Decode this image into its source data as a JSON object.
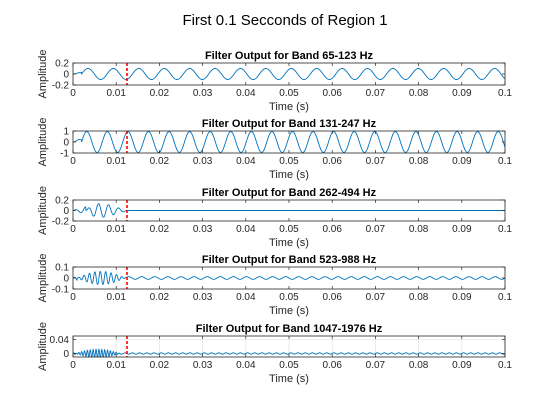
{
  "figure": {
    "title": "First 0.1 Secconds of Region 1"
  },
  "chart_data": [
    {
      "type": "line",
      "title": "Filter Output for Band 65-123 Hz",
      "xlabel": "Time (s)",
      "ylabel": "Amplitude",
      "xlim": [
        0,
        0.1
      ],
      "ylim": [
        -0.2,
        0.2
      ],
      "xticks": [
        0,
        0.01,
        0.02,
        0.03,
        0.04,
        0.05,
        0.06,
        0.07,
        0.08,
        0.09,
        0.1
      ],
      "xtick_labels": [
        "0",
        "0.01",
        "0.02",
        "0.03",
        "0.04",
        "0.05",
        "0.06",
        "0.07",
        "0.08",
        "0.09",
        "0.1"
      ],
      "yticks": [
        -0.2,
        0,
        0.2
      ],
      "ytick_labels": [
        "-0.2",
        "0",
        "0.2"
      ],
      "grid": false,
      "marker_x": 0.0125,
      "signal": {
        "freq_hz": 170,
        "amplitude": 0.1,
        "onset_s": 0.002,
        "envelope": "steady"
      },
      "colors": {
        "line": "#0072bd",
        "marker": "#ff0000"
      }
    },
    {
      "type": "line",
      "title": "Filter Output for Band 131-247 Hz",
      "xlabel": "Time (s)",
      "ylabel": "Amplitude",
      "xlim": [
        0,
        0.1
      ],
      "ylim": [
        -1,
        1
      ],
      "xticks": [
        0,
        0.01,
        0.02,
        0.03,
        0.04,
        0.05,
        0.06,
        0.07,
        0.08,
        0.09,
        0.1
      ],
      "xtick_labels": [
        "0",
        "0.01",
        "0.02",
        "0.03",
        "0.04",
        "0.05",
        "0.06",
        "0.07",
        "0.08",
        "0.09",
        "0.1"
      ],
      "yticks": [
        -1,
        0,
        1
      ],
      "ytick_labels": [
        "-1",
        "0",
        "1"
      ],
      "grid": false,
      "marker_x": 0.0125,
      "signal": {
        "freq_hz": 210,
        "amplitude": 0.95,
        "onset_s": 0.002,
        "envelope": "steady"
      },
      "colors": {
        "line": "#0072bd",
        "marker": "#ff0000"
      }
    },
    {
      "type": "line",
      "title": "Filter Output for Band 262-494 Hz",
      "xlabel": "Time (s)",
      "ylabel": "Amplitude",
      "xlim": [
        0,
        0.1
      ],
      "ylim": [
        -0.2,
        0.2
      ],
      "xticks": [
        0,
        0.01,
        0.02,
        0.03,
        0.04,
        0.05,
        0.06,
        0.07,
        0.08,
        0.09,
        0.1
      ],
      "xtick_labels": [
        "0",
        "0.01",
        "0.02",
        "0.03",
        "0.04",
        "0.05",
        "0.06",
        "0.07",
        "0.08",
        "0.09",
        "0.1"
      ],
      "yticks": [
        -0.2,
        0,
        0.2
      ],
      "ytick_labels": [
        "-0.2",
        "0",
        "0.2"
      ],
      "grid": false,
      "marker_x": 0.0125,
      "signal": {
        "freq_hz": 430,
        "amplitude": 0.2,
        "onset_s": 0.003,
        "envelope": "decaying",
        "end_s": 0.013
      },
      "colors": {
        "line": "#0072bd",
        "marker": "#ff0000"
      }
    },
    {
      "type": "line",
      "title": "Filter Output for Band 523-988 Hz",
      "xlabel": "Time (s)",
      "ylabel": "Amplitude",
      "xlim": [
        0,
        0.1
      ],
      "ylim": [
        -0.1,
        0.1
      ],
      "xticks": [
        0,
        0.01,
        0.02,
        0.03,
        0.04,
        0.05,
        0.06,
        0.07,
        0.08,
        0.09,
        0.1
      ],
      "xtick_labels": [
        "0",
        "0.01",
        "0.02",
        "0.03",
        "0.04",
        "0.05",
        "0.06",
        "0.07",
        "0.08",
        "0.09",
        "0.1"
      ],
      "yticks": [
        -0.1,
        0,
        0.1
      ],
      "ytick_labels": [
        "-0.1",
        "0",
        "0.1"
      ],
      "grid": false,
      "marker_x": 0.0125,
      "signal": {
        "freq_hz": 800,
        "amplitude": 0.06,
        "onset_s": 0.001,
        "envelope": "burst",
        "end_s": 0.012,
        "tail_freq_hz": 330,
        "tail_amplitude": 0.012
      },
      "colors": {
        "line": "#0072bd",
        "marker": "#ff0000"
      }
    },
    {
      "type": "line",
      "title": "Filter Output for Band 1047-1976 Hz",
      "xlabel": "Time (s)",
      "ylabel": "Amplitude",
      "xlim": [
        0,
        0.1
      ],
      "ylim": [
        -0.01,
        0.05
      ],
      "xticks": [
        0,
        0.01,
        0.02,
        0.03,
        0.04,
        0.05,
        0.06,
        0.07,
        0.08,
        0.09,
        0.1
      ],
      "xtick_labels": [
        "0",
        "0.01",
        "0.02",
        "0.03",
        "0.04",
        "0.05",
        "0.06",
        "0.07",
        "0.08",
        "0.09",
        "0.1"
      ],
      "yticks": [
        0,
        0.04
      ],
      "ytick_labels": [
        "0",
        "0.04"
      ],
      "grid": true,
      "marker_x": 0.0125,
      "signal": {
        "freq_hz": 1500,
        "amplitude": 0.012,
        "onset_s": 0.0005,
        "envelope": "burst",
        "end_s": 0.011,
        "tail_freq_hz": 600,
        "tail_amplitude": 0.002
      },
      "colors": {
        "line": "#0072bd",
        "marker": "#ff0000"
      }
    }
  ]
}
